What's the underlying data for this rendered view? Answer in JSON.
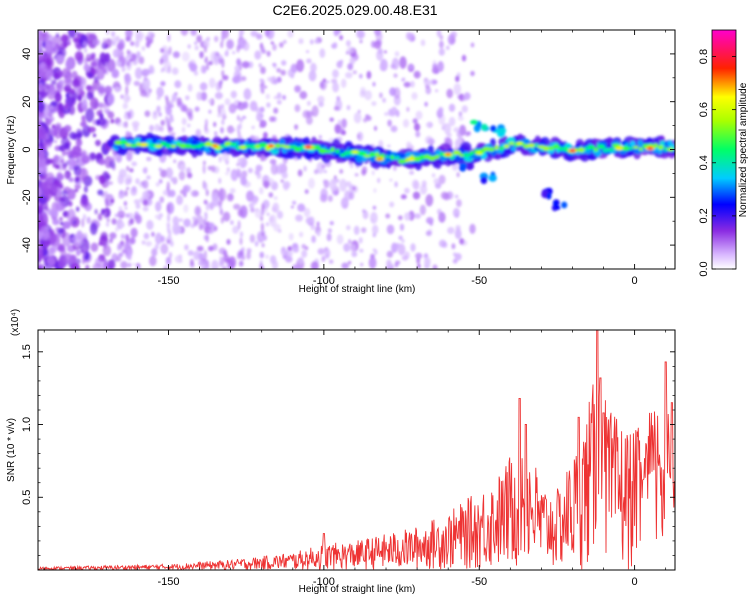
{
  "title": "C2E6.2025.029.00.48.E31",
  "chart_data": [
    {
      "type": "heatmap",
      "xlabel": "Height of straight line (km)",
      "ylabel": "Frequency (Hz)",
      "xlim": [
        -192,
        13
      ],
      "ylim": [
        -50,
        50
      ],
      "xticks": [
        -150,
        -100,
        -50,
        0
      ],
      "yticks": [
        -40,
        -20,
        0,
        20,
        40
      ],
      "grid": false,
      "colorbar": {
        "label": "Normalized spectral amplitude",
        "range": [
          0,
          0.9
        ],
        "ticks": [
          "0.0",
          "0.2",
          "0.4",
          "0.6",
          "0.8"
        ],
        "colors": [
          "#ffffff",
          "#8a2be2",
          "#0000ff",
          "#00ffff",
          "#00ff00",
          "#ffff00",
          "#ff0000",
          "#ff00cc"
        ]
      },
      "ridge": [
        {
          "x": -167,
          "y": 2.5
        },
        {
          "x": -150,
          "y": 2
        },
        {
          "x": -135,
          "y": 1.5
        },
        {
          "x": -120,
          "y": 1.5
        },
        {
          "x": -105,
          "y": 0.5
        },
        {
          "x": -90,
          "y": -2
        },
        {
          "x": -75,
          "y": -4
        },
        {
          "x": -65,
          "y": -3
        },
        {
          "x": -50,
          "y": -1.5
        },
        {
          "x": -40,
          "y": 2
        },
        {
          "x": -30,
          "y": 1
        },
        {
          "x": -20,
          "y": -0.5
        },
        {
          "x": -10,
          "y": 0.5
        },
        {
          "x": 0,
          "y": 1
        },
        {
          "x": 13,
          "y": 1
        }
      ],
      "hotspots": [
        {
          "x": -158,
          "y": 2,
          "v": 0.75
        },
        {
          "x": -135,
          "y": 1.5,
          "v": 0.8
        },
        {
          "x": -117,
          "y": 1.5,
          "v": 0.85
        },
        {
          "x": -105,
          "y": 1,
          "v": 0.9
        },
        {
          "x": -90,
          "y": -1,
          "v": 0.7
        },
        {
          "x": -82,
          "y": -4,
          "v": 0.8
        },
        {
          "x": -72,
          "y": -4,
          "v": 0.75
        },
        {
          "x": -60,
          "y": -2,
          "v": 0.8
        },
        {
          "x": -50,
          "y": -1.5,
          "v": 0.7
        },
        {
          "x": -37,
          "y": 2.5,
          "v": 0.7
        },
        {
          "x": -20,
          "y": -0.5,
          "v": 0.9
        },
        {
          "x": -5,
          "y": 0.5,
          "v": 0.75
        },
        {
          "x": 5,
          "y": 0.5,
          "v": 0.9
        }
      ],
      "branch": [
        {
          "x": -50,
          "y": 10,
          "v": 0.45
        },
        {
          "x": -44,
          "y": 8,
          "v": 0.4
        },
        {
          "x": -28,
          "y": -18,
          "v": 0.3
        },
        {
          "x": -24,
          "y": -23,
          "v": 0.3
        },
        {
          "x": -47,
          "y": -12,
          "v": 0.35
        },
        {
          "x": -55,
          "y": -8,
          "v": 0.3
        }
      ]
    },
    {
      "type": "line",
      "xlabel": "Height of straight line (km)",
      "ylabel": "SNR (10 * v/v)",
      "y_multiplier": "(x10⁴)",
      "xlim": [
        -192,
        13
      ],
      "ylim": [
        0,
        1.65
      ],
      "xticks": [
        -150,
        -100,
        -50,
        0
      ],
      "yticks": [
        0.5,
        1.0,
        1.5
      ],
      "ytick_labels": [
        "0.5",
        "1.0",
        "1.5"
      ],
      "grid": false,
      "color": "#ee3333",
      "envelope": [
        {
          "x": -192,
          "y": 0.02
        },
        {
          "x": -170,
          "y": 0.03
        },
        {
          "x": -150,
          "y": 0.04
        },
        {
          "x": -130,
          "y": 0.07
        },
        {
          "x": -110,
          "y": 0.12
        },
        {
          "x": -100,
          "y": 0.18
        },
        {
          "x": -90,
          "y": 0.2
        },
        {
          "x": -80,
          "y": 0.25
        },
        {
          "x": -70,
          "y": 0.3
        },
        {
          "x": -60,
          "y": 0.4
        },
        {
          "x": -50,
          "y": 0.55
        },
        {
          "x": -42,
          "y": 0.7
        },
        {
          "x": -36,
          "y": 1.05
        },
        {
          "x": -30,
          "y": 0.6
        },
        {
          "x": -25,
          "y": 0.55
        },
        {
          "x": -18,
          "y": 0.9
        },
        {
          "x": -12,
          "y": 1.4
        },
        {
          "x": -8,
          "y": 1.1
        },
        {
          "x": 0,
          "y": 0.95
        },
        {
          "x": 8,
          "y": 1.2
        },
        {
          "x": 13,
          "y": 1.0
        }
      ],
      "peaks": [
        {
          "x": -100,
          "y": 0.25
        },
        {
          "x": -37,
          "y": 1.18
        },
        {
          "x": -35,
          "y": 1.0
        },
        {
          "x": -18,
          "y": 1.05
        },
        {
          "x": -12,
          "y": 1.65
        },
        {
          "x": -11,
          "y": 1.32
        },
        {
          "x": -10,
          "y": 1.08
        },
        {
          "x": 10,
          "y": 1.43
        },
        {
          "x": 12,
          "y": 1.15
        }
      ],
      "dips": [
        {
          "x": 12.5,
          "y": 0.43
        }
      ]
    }
  ]
}
